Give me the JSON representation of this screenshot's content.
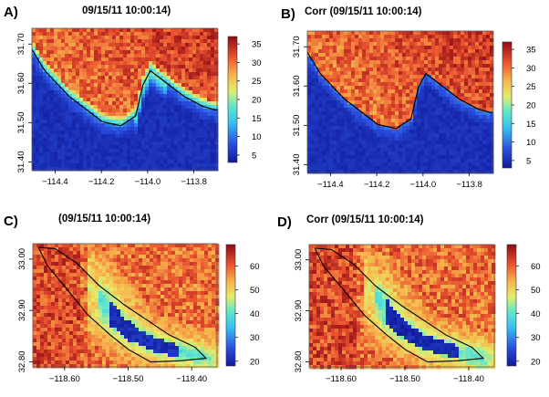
{
  "figure": {
    "panels": [
      {
        "letter": "A)",
        "title": "09/15/11 10:00:14)",
        "colorbar_ticks": [
          "35",
          "30",
          "25",
          "20",
          "15",
          "10",
          "5"
        ],
        "x_ticks": [
          "−114.4",
          "−114.2",
          "−114.0",
          "−113.8"
        ],
        "y_ticks": [
          "31.70",
          "31.60",
          "31.50",
          "31.40"
        ]
      },
      {
        "letter": "B)",
        "title": "Corr (09/15/11 10:00:14)",
        "colorbar_ticks": [
          "35",
          "30",
          "25",
          "20",
          "15",
          "10",
          "5"
        ],
        "x_ticks": [
          "−114.4",
          "−114.2",
          "−114.0",
          "−113.8"
        ],
        "y_ticks": [
          "31.70",
          "31.60",
          "31.50",
          "31.40"
        ]
      },
      {
        "letter": "C)",
        "title": "(09/15/11 10:00:14)",
        "colorbar_ticks": [
          "60",
          "50",
          "40",
          "30",
          "20"
        ],
        "x_ticks": [
          "−118.60",
          "−118.50",
          "−118.40"
        ],
        "y_ticks": [
          "33.00",
          "32.90",
          "32.80"
        ]
      },
      {
        "letter": "D)",
        "title": "Corr (09/15/11 10:00:14)",
        "colorbar_ticks": [
          "60",
          "50",
          "40",
          "30",
          "20"
        ],
        "x_ticks": [
          "−118.60",
          "−118.50",
          "−118.40"
        ],
        "y_ticks": [
          "33.00",
          "32.90",
          "32.80"
        ]
      }
    ]
  },
  "chart_data": [
    {
      "type": "heatmap",
      "title": "09/15/11 10:00:14)",
      "panel_label": "A)",
      "x_range": [
        -114.5,
        -113.7
      ],
      "y_range": [
        31.38,
        31.74
      ],
      "x_ticks": [
        -114.4,
        -114.2,
        -114.0,
        -113.8
      ],
      "y_ticks": [
        31.7,
        31.6,
        31.5,
        31.4
      ],
      "colorbar": {
        "min": 3,
        "max": 37,
        "ticks": [
          5,
          10,
          15,
          20,
          25,
          30,
          35
        ]
      },
      "field": "land high (25-37), water low (3-7), coastline low blue band"
    },
    {
      "type": "heatmap",
      "title": "Corr (09/15/11 10:00:14)",
      "panel_label": "B)",
      "x_range": [
        -114.5,
        -113.7
      ],
      "y_range": [
        31.38,
        31.74
      ],
      "x_ticks": [
        -114.4,
        -114.2,
        -114.0,
        -113.8
      ],
      "y_ticks": [
        31.7,
        31.6,
        31.5,
        31.4
      ],
      "colorbar": {
        "min": 3,
        "max": 37,
        "ticks": [
          5,
          10,
          15,
          20,
          25,
          30,
          35
        ]
      },
      "field": "corrected: land high (25-37), water low (3-7)"
    },
    {
      "type": "heatmap",
      "title": "(09/15/11 10:00:14)",
      "panel_label": "C)",
      "x_range": [
        -118.65,
        -118.36
      ],
      "y_range": [
        32.79,
        33.03
      ],
      "x_ticks": [
        -118.6,
        -118.5,
        -118.4
      ],
      "y_ticks": [
        33.0,
        32.9,
        32.8
      ],
      "colorbar": {
        "min": 18,
        "max": 69,
        "ticks": [
          20,
          30,
          40,
          50,
          60
        ]
      },
      "field": "island low (20-30) along SE arm, halo 40-55, background 60-69"
    },
    {
      "type": "heatmap",
      "title": "Corr (09/15/11 10:00:14)",
      "panel_label": "D)",
      "x_range": [
        -118.65,
        -118.36
      ],
      "y_range": [
        32.79,
        33.03
      ],
      "x_ticks": [
        -118.6,
        -118.5,
        -118.4
      ],
      "y_ticks": [
        33.0,
        32.9,
        32.8
      ],
      "colorbar": {
        "min": 18,
        "max": 69,
        "ticks": [
          20,
          30,
          40,
          50,
          60
        ]
      },
      "field": "corrected: island low (20-30), halo 40-55, background 60-69"
    }
  ]
}
